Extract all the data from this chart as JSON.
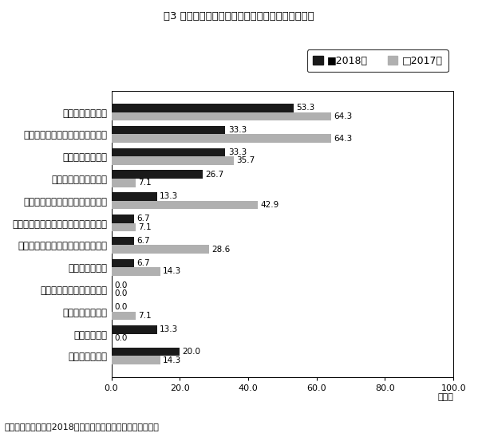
{
  "title": "図3 生産面の問題点（製造業のみ）：アルゼンチン",
  "categories": [
    "調達コストの上昇",
    "原材料・部品の現地調達の難しさ",
    "品質管理の難しさ",
    "物流インフラの未整備",
    "限界に近づきつつあるコスト削減",
    "短期間での生産品目の切り替えが困難",
    "資本財・中間財輸入に対する高関税",
    "電力不足・停電",
    "設備面での生産能力の不足",
    "環境規制の厳格化",
    "その他の問題",
    "特に問題はない"
  ],
  "values_2018": [
    53.3,
    33.3,
    33.3,
    26.7,
    13.3,
    6.7,
    6.7,
    6.7,
    0.0,
    0.0,
    13.3,
    20.0
  ],
  "values_2017": [
    64.3,
    64.3,
    35.7,
    7.1,
    42.9,
    7.1,
    28.6,
    14.3,
    0.0,
    7.1,
    0.0,
    14.3
  ],
  "color_2018": "#1a1a1a",
  "color_2017": "#b0b0b0",
  "legend_2018": "2018年",
  "legend_2017": "2017年",
  "xlim": [
    0,
    100
  ],
  "xticks": [
    0.0,
    20.0,
    40.0,
    60.0,
    80.0,
    100.0
  ],
  "xlabel_unit": "（％）",
  "footer": "（出所）ジェトロ「2018年度中南米進出日系企業実態調査」",
  "bar_height": 0.38,
  "fontsize_title": 9.5,
  "fontsize_label": 8.5,
  "fontsize_tick": 8,
  "fontsize_value": 7.5,
  "fontsize_legend": 9,
  "fontsize_footer": 8,
  "fontsize_unit": 8,
  "background_color": "#ffffff"
}
